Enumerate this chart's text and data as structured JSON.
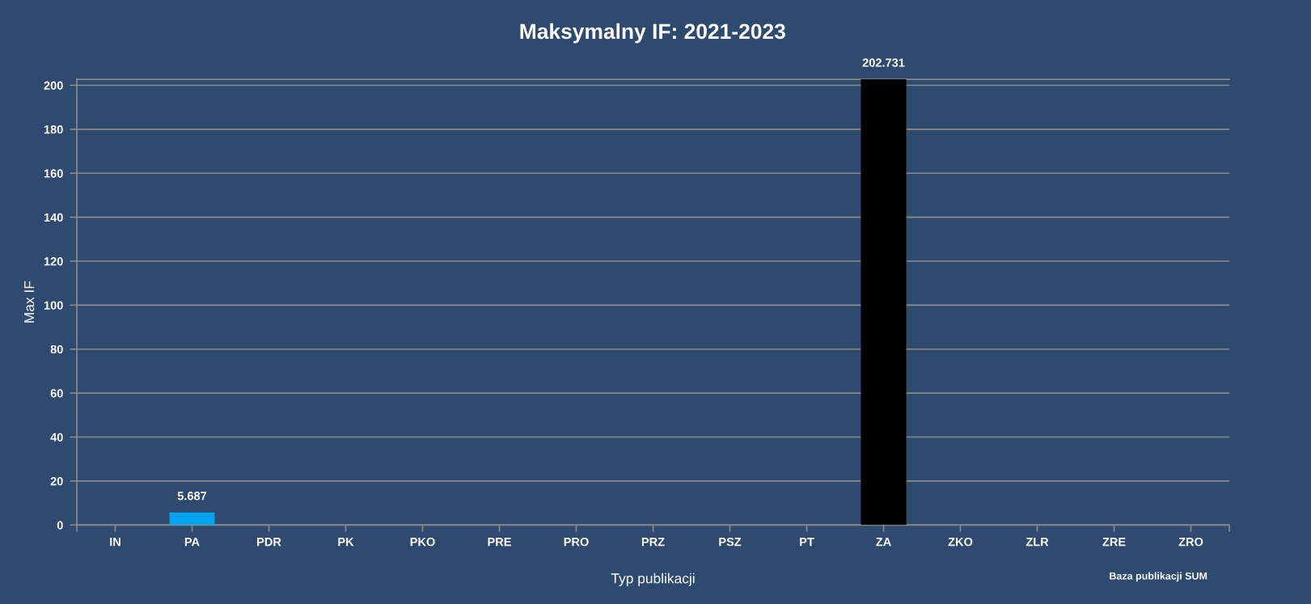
{
  "chart_data": {
    "type": "bar",
    "title": "Maksymalny IF: 2021-2023",
    "xlabel": "Typ publikacji",
    "ylabel": "Max IF",
    "annotations": [
      "Baza publikacji SUM"
    ],
    "categories": [
      "IN",
      "PA",
      "PDR",
      "PK",
      "PKO",
      "PRE",
      "PRO",
      "PRZ",
      "PSZ",
      "PT",
      "ZA",
      "ZKO",
      "ZLR",
      "ZRE",
      "ZRO"
    ],
    "values": [
      null,
      5.687,
      null,
      null,
      null,
      null,
      null,
      null,
      null,
      null,
      202.731,
      null,
      null,
      null,
      null
    ],
    "colors": [
      null,
      "#00a3ed",
      null,
      null,
      null,
      null,
      null,
      null,
      null,
      null,
      "#000000",
      null,
      null,
      null,
      null
    ],
    "value_labels": [
      null,
      "5.687",
      null,
      null,
      null,
      null,
      null,
      null,
      null,
      null,
      "202.731",
      null,
      null,
      null,
      null
    ],
    "ylim": [
      0,
      202.731
    ],
    "yticks": [
      0,
      20,
      40,
      60,
      80,
      100,
      120,
      140,
      160,
      180,
      200
    ],
    "grid": "y"
  }
}
